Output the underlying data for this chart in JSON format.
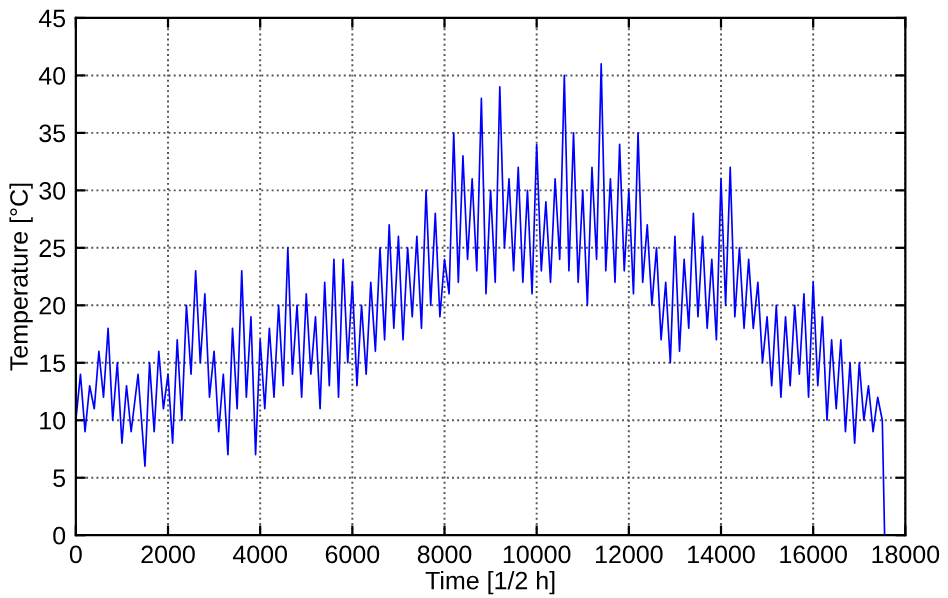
{
  "chart_data": {
    "type": "line",
    "xlabel": "Time [1/2 h]",
    "ylabel": "Temperature [°C]",
    "xlim": [
      0,
      18000
    ],
    "xticks": [
      0,
      2000,
      4000,
      6000,
      8000,
      10000,
      12000,
      14000,
      16000,
      18000
    ],
    "ylim": [
      0,
      45
    ],
    "yticks": [
      0,
      5,
      10,
      15,
      20,
      25,
      30,
      35,
      40,
      45
    ],
    "grid": true,
    "line_style": "solid",
    "marker": "none",
    "series": [
      {
        "color": "#0000ff",
        "x": [
          0,
          100,
          200,
          300,
          400,
          500,
          600,
          700,
          800,
          900,
          1000,
          1100,
          1200,
          1350,
          1500,
          1600,
          1700,
          1800,
          1900,
          2000,
          2100,
          2200,
          2300,
          2400,
          2500,
          2600,
          2700,
          2800,
          2900,
          3000,
          3100,
          3200,
          3300,
          3400,
          3500,
          3600,
          3700,
          3800,
          3900,
          4000,
          4100,
          4200,
          4300,
          4400,
          4500,
          4600,
          4700,
          4800,
          4900,
          5000,
          5100,
          5200,
          5300,
          5400,
          5500,
          5600,
          5700,
          5800,
          5900,
          6000,
          6100,
          6200,
          6300,
          6400,
          6500,
          6600,
          6700,
          6800,
          6900,
          7000,
          7100,
          7200,
          7300,
          7400,
          7500,
          7600,
          7700,
          7800,
          7900,
          8000,
          8100,
          8200,
          8300,
          8400,
          8500,
          8600,
          8700,
          8800,
          8900,
          9000,
          9100,
          9200,
          9300,
          9400,
          9500,
          9600,
          9700,
          9800,
          9900,
          10000,
          10100,
          10200,
          10300,
          10400,
          10500,
          10600,
          10700,
          10800,
          10900,
          11000,
          11100,
          11200,
          11300,
          11400,
          11500,
          11600,
          11700,
          11800,
          11900,
          12000,
          12100,
          12200,
          12300,
          12400,
          12500,
          12600,
          12700,
          12800,
          12900,
          13000,
          13100,
          13200,
          13300,
          13400,
          13500,
          13600,
          13700,
          13800,
          13900,
          14000,
          14100,
          14200,
          14300,
          14400,
          14500,
          14600,
          14700,
          14800,
          14900,
          15000,
          15100,
          15200,
          15300,
          15400,
          15500,
          15600,
          15700,
          15800,
          15900,
          16000,
          16100,
          16200,
          16300,
          16400,
          16500,
          16600,
          16700,
          16800,
          16900,
          17000,
          17100,
          17200,
          17300,
          17400,
          17500,
          17550
        ],
        "values": [
          10,
          14,
          9,
          13,
          11,
          16,
          12,
          18,
          10,
          15,
          8,
          13,
          9,
          14,
          6,
          15,
          9,
          16,
          11,
          14,
          8,
          17,
          10,
          20,
          14,
          23,
          15,
          21,
          12,
          16,
          9,
          14,
          7,
          18,
          11,
          23,
          12,
          19,
          7,
          17,
          11,
          18,
          12,
          20,
          13,
          25,
          14,
          20,
          12,
          21,
          14,
          19,
          11,
          22,
          13,
          24,
          12,
          24,
          15,
          22,
          13,
          20,
          14,
          22,
          16,
          25,
          17,
          27,
          18,
          26,
          17,
          25,
          19,
          26,
          18,
          30,
          20,
          28,
          19,
          24,
          21,
          35,
          22,
          33,
          24,
          31,
          23,
          38,
          21,
          30,
          22,
          39,
          25,
          31,
          23,
          32,
          22,
          30,
          21,
          34,
          23,
          29,
          22,
          31,
          24,
          40,
          23,
          35,
          22,
          30,
          20,
          32,
          24,
          41,
          23,
          31,
          22,
          34,
          23,
          30,
          21,
          35,
          22,
          27,
          20,
          25,
          17,
          22,
          15,
          26,
          16,
          24,
          18,
          28,
          19,
          26,
          18,
          24,
          17,
          31,
          20,
          32,
          19,
          25,
          18,
          24,
          18,
          22,
          15,
          19,
          13,
          20,
          12,
          19,
          13,
          20,
          14,
          21,
          12,
          22,
          13,
          19,
          10,
          17,
          11,
          17,
          9,
          15,
          8,
          15,
          10,
          13,
          9,
          12,
          10,
          0
        ]
      }
    ]
  }
}
